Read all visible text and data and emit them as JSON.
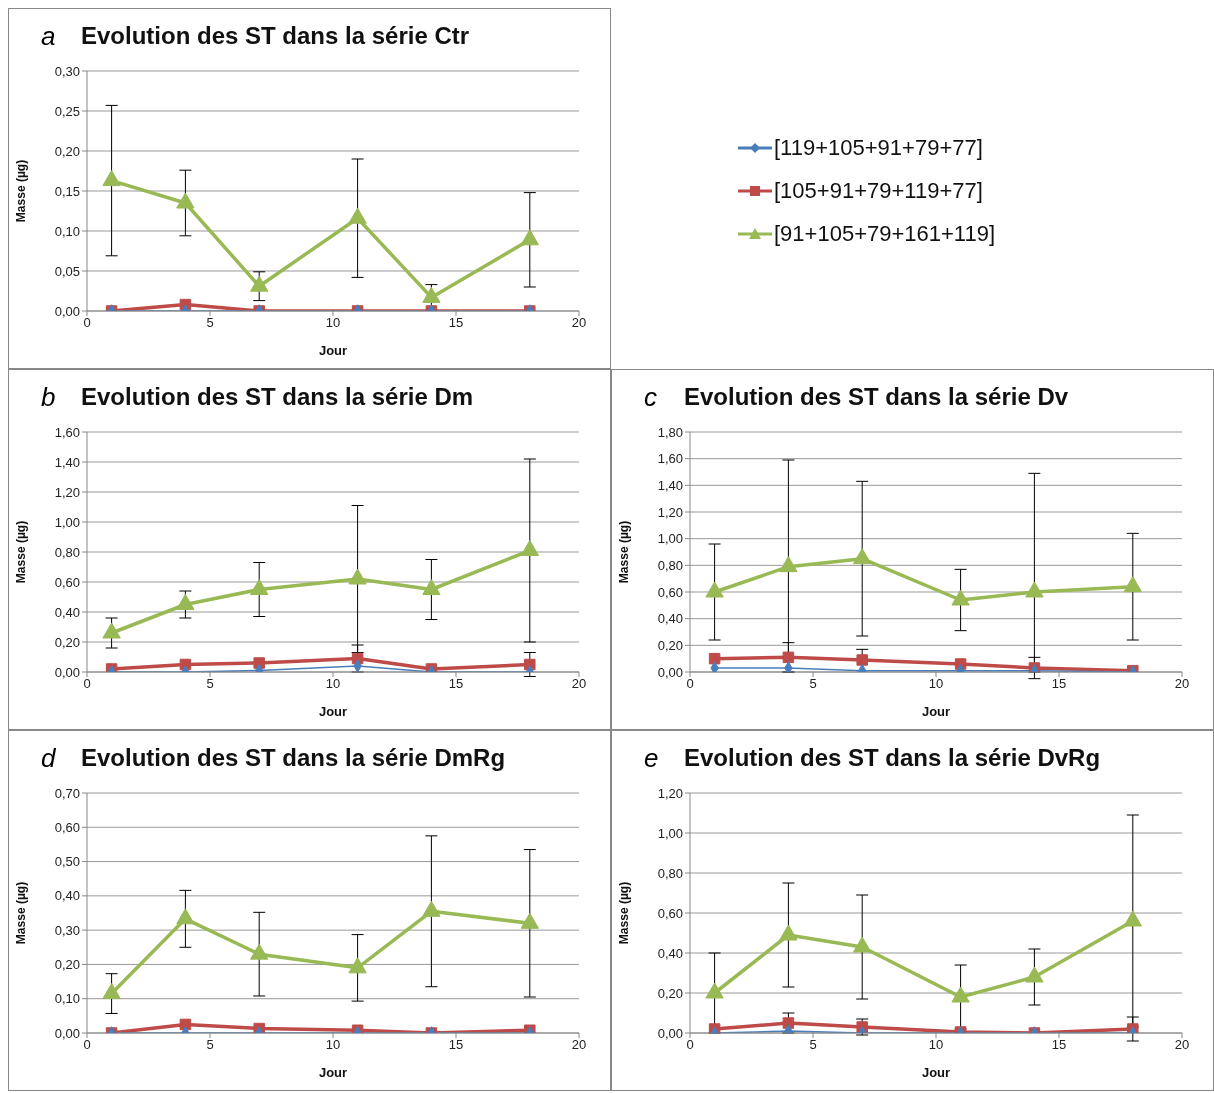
{
  "chart_data": [
    {
      "type": "line",
      "title": "Evolution des ST dans la série Ctr",
      "annotations": [
        "a"
      ],
      "xlabel": "Jour",
      "ylabel": "Masse  (µg)",
      "x": [
        1,
        4,
        7,
        11,
        14,
        18
      ],
      "xlim": [
        0,
        20
      ],
      "xticks": [
        0,
        5,
        10,
        15,
        20
      ],
      "ylim": [
        0,
        0.3
      ],
      "yticks": [
        {
          "value": 0,
          "label": "0,00"
        },
        {
          "value": 0.05,
          "label": "0,05"
        },
        {
          "value": 0.1,
          "label": "0,10"
        },
        {
          "value": 0.15,
          "label": "0,15"
        },
        {
          "value": 0.2,
          "label": "0,20"
        },
        {
          "value": 0.25,
          "label": "0,25"
        },
        {
          "value": 0.3,
          "label": "0,30"
        }
      ],
      "grid": "y",
      "legend": "right",
      "series": [
        {
          "name": "[119+105+91+79+77]",
          "color": "#4a7ebb",
          "marker": "diamond",
          "values": [
            0,
            0,
            0,
            0,
            0,
            0
          ]
        },
        {
          "name": "[105+91+79+119+77]",
          "color": "#be4b48",
          "marker": "square",
          "values": [
            0,
            0.008,
            0,
            0,
            0,
            0
          ]
        },
        {
          "name": "[91+105+79+161+119]",
          "color": "#98b954",
          "marker": "triangle",
          "values": [
            0.163,
            0.135,
            0.031,
            0.116,
            0.017,
            0.089
          ],
          "errors": [
            0.094,
            0.041,
            0.018,
            0.074,
            0.016,
            0.059
          ]
        }
      ]
    },
    {
      "type": "line",
      "title": "Evolution des ST dans la série Dm",
      "annotations": [
        "b"
      ],
      "xlabel": "Jour",
      "ylabel": "Masse  (µg)",
      "x": [
        1,
        4,
        7,
        11,
        14,
        18
      ],
      "xlim": [
        0,
        20
      ],
      "xticks": [
        0,
        5,
        10,
        15,
        20
      ],
      "ylim": [
        0,
        1.6
      ],
      "yticks": [
        {
          "value": 0,
          "label": "0,00"
        },
        {
          "value": 0.2,
          "label": "0,20"
        },
        {
          "value": 0.4,
          "label": "0,40"
        },
        {
          "value": 0.6,
          "label": "0,60"
        },
        {
          "value": 0.8,
          "label": "0,80"
        },
        {
          "value": 1,
          "label": "1,00"
        },
        {
          "value": 1.2,
          "label": "1,20"
        },
        {
          "value": 1.4,
          "label": "1,40"
        },
        {
          "value": 1.6,
          "label": "1,60"
        }
      ],
      "grid": "y",
      "series": [
        {
          "color": "#4a7ebb",
          "marker": "diamond",
          "values": [
            0,
            0,
            0.01,
            0.04,
            0,
            0
          ]
        },
        {
          "color": "#be4b48",
          "marker": "square",
          "values": [
            0.02,
            0.05,
            0.06,
            0.09,
            0.02,
            0.05
          ],
          "errors": [
            null,
            null,
            null,
            0.09,
            null,
            0.08
          ]
        },
        {
          "color": "#98b954",
          "marker": "triangle",
          "values": [
            0.26,
            0.45,
            0.55,
            0.62,
            0.55,
            0.81
          ],
          "errors": [
            0.1,
            0.09,
            0.18,
            0.49,
            0.2,
            0.61
          ]
        }
      ]
    },
    {
      "type": "line",
      "title": "Evolution des ST dans la série Dv",
      "annotations": [
        "c"
      ],
      "xlabel": "Jour",
      "ylabel": "Masse  (µg)",
      "x": [
        1,
        4,
        7,
        11,
        14,
        18
      ],
      "xlim": [
        0,
        20
      ],
      "xticks": [
        0,
        5,
        10,
        15,
        20
      ],
      "ylim": [
        0,
        1.8
      ],
      "yticks": [
        {
          "value": 0,
          "label": "0,00"
        },
        {
          "value": 0.2,
          "label": "0,20"
        },
        {
          "value": 0.4,
          "label": "0,40"
        },
        {
          "value": 0.6,
          "label": "0,60"
        },
        {
          "value": 0.8,
          "label": "0,80"
        },
        {
          "value": 1,
          "label": "1,00"
        },
        {
          "value": 1.2,
          "label": "1,20"
        },
        {
          "value": 1.4,
          "label": "1,40"
        },
        {
          "value": 1.6,
          "label": "1,60"
        },
        {
          "value": 1.8,
          "label": "1,80"
        }
      ],
      "grid": "y",
      "series": [
        {
          "color": "#4a7ebb",
          "marker": "diamond",
          "values": [
            0.03,
            0.03,
            0.01,
            0.01,
            0.01,
            0
          ]
        },
        {
          "color": "#be4b48",
          "marker": "square",
          "values": [
            0.1,
            0.11,
            0.09,
            0.06,
            0.03,
            0.01
          ],
          "errors": [
            null,
            0.11,
            0.08,
            null,
            0.08,
            null
          ]
        },
        {
          "color": "#98b954",
          "marker": "triangle",
          "values": [
            0.6,
            0.79,
            0.85,
            0.54,
            0.6,
            0.64
          ],
          "errors": [
            0.36,
            [
              0,
              1.59
            ],
            0.58,
            0.23,
            [
              0,
              1.49
            ],
            0.4
          ]
        }
      ]
    },
    {
      "type": "line",
      "title": "Evolution des ST dans la série DmRg",
      "annotations": [
        "d"
      ],
      "xlabel": "Jour",
      "ylabel": "Masse  (µg)",
      "x": [
        1,
        4,
        7,
        11,
        14,
        18
      ],
      "xlim": [
        0,
        20
      ],
      "xticks": [
        0,
        5,
        10,
        15,
        20
      ],
      "ylim": [
        0,
        0.7
      ],
      "yticks": [
        {
          "value": 0,
          "label": "0,00"
        },
        {
          "value": 0.1,
          "label": "0,10"
        },
        {
          "value": 0.2,
          "label": "0,20"
        },
        {
          "value": 0.3,
          "label": "0,30"
        },
        {
          "value": 0.4,
          "label": "0,40"
        },
        {
          "value": 0.5,
          "label": "0,50"
        },
        {
          "value": 0.6,
          "label": "0,60"
        },
        {
          "value": 0.7,
          "label": "0,70"
        }
      ],
      "grid": "y",
      "series": [
        {
          "color": "#4a7ebb",
          "marker": "diamond",
          "values": [
            0,
            0,
            0,
            0,
            0,
            0
          ]
        },
        {
          "color": "#be4b48",
          "marker": "square",
          "values": [
            0,
            0.025,
            0.013,
            0.008,
            0,
            0.008
          ]
        },
        {
          "color": "#98b954",
          "marker": "triangle",
          "values": [
            0.115,
            0.333,
            0.23,
            0.19,
            0.355,
            0.32
          ],
          "errors": [
            0.058,
            0.083,
            0.122,
            0.097,
            0.22,
            0.215
          ]
        }
      ]
    },
    {
      "type": "line",
      "title": "Evolution des ST dans la série DvRg",
      "annotations": [
        "e"
      ],
      "xlabel": "Jour",
      "ylabel": "Masse  (µg)",
      "x": [
        1,
        4,
        7,
        11,
        14,
        18
      ],
      "xlim": [
        0,
        20
      ],
      "xticks": [
        0,
        5,
        10,
        15,
        20
      ],
      "ylim": [
        0,
        1.2
      ],
      "yticks": [
        {
          "value": 0,
          "label": "0,00"
        },
        {
          "value": 0.2,
          "label": "0,20"
        },
        {
          "value": 0.4,
          "label": "0,40"
        },
        {
          "value": 0.6,
          "label": "0,60"
        },
        {
          "value": 0.8,
          "label": "0,80"
        },
        {
          "value": 1,
          "label": "1,00"
        },
        {
          "value": 1.2,
          "label": "1,20"
        }
      ],
      "grid": "y",
      "series": [
        {
          "color": "#4a7ebb",
          "marker": "diamond",
          "values": [
            0,
            0.01,
            0,
            0,
            0,
            0
          ]
        },
        {
          "color": "#be4b48",
          "marker": "square",
          "values": [
            0.02,
            0.05,
            0.03,
            0.005,
            0,
            0.02
          ],
          "errors": [
            null,
            0.05,
            0.04,
            null,
            null,
            0.06
          ]
        },
        {
          "color": "#98b954",
          "marker": "triangle",
          "values": [
            0.2,
            0.49,
            0.43,
            0.18,
            0.28,
            0.56
          ],
          "errors": [
            0.2,
            0.26,
            0.26,
            0.16,
            0.14,
            0.53
          ]
        }
      ]
    }
  ]
}
